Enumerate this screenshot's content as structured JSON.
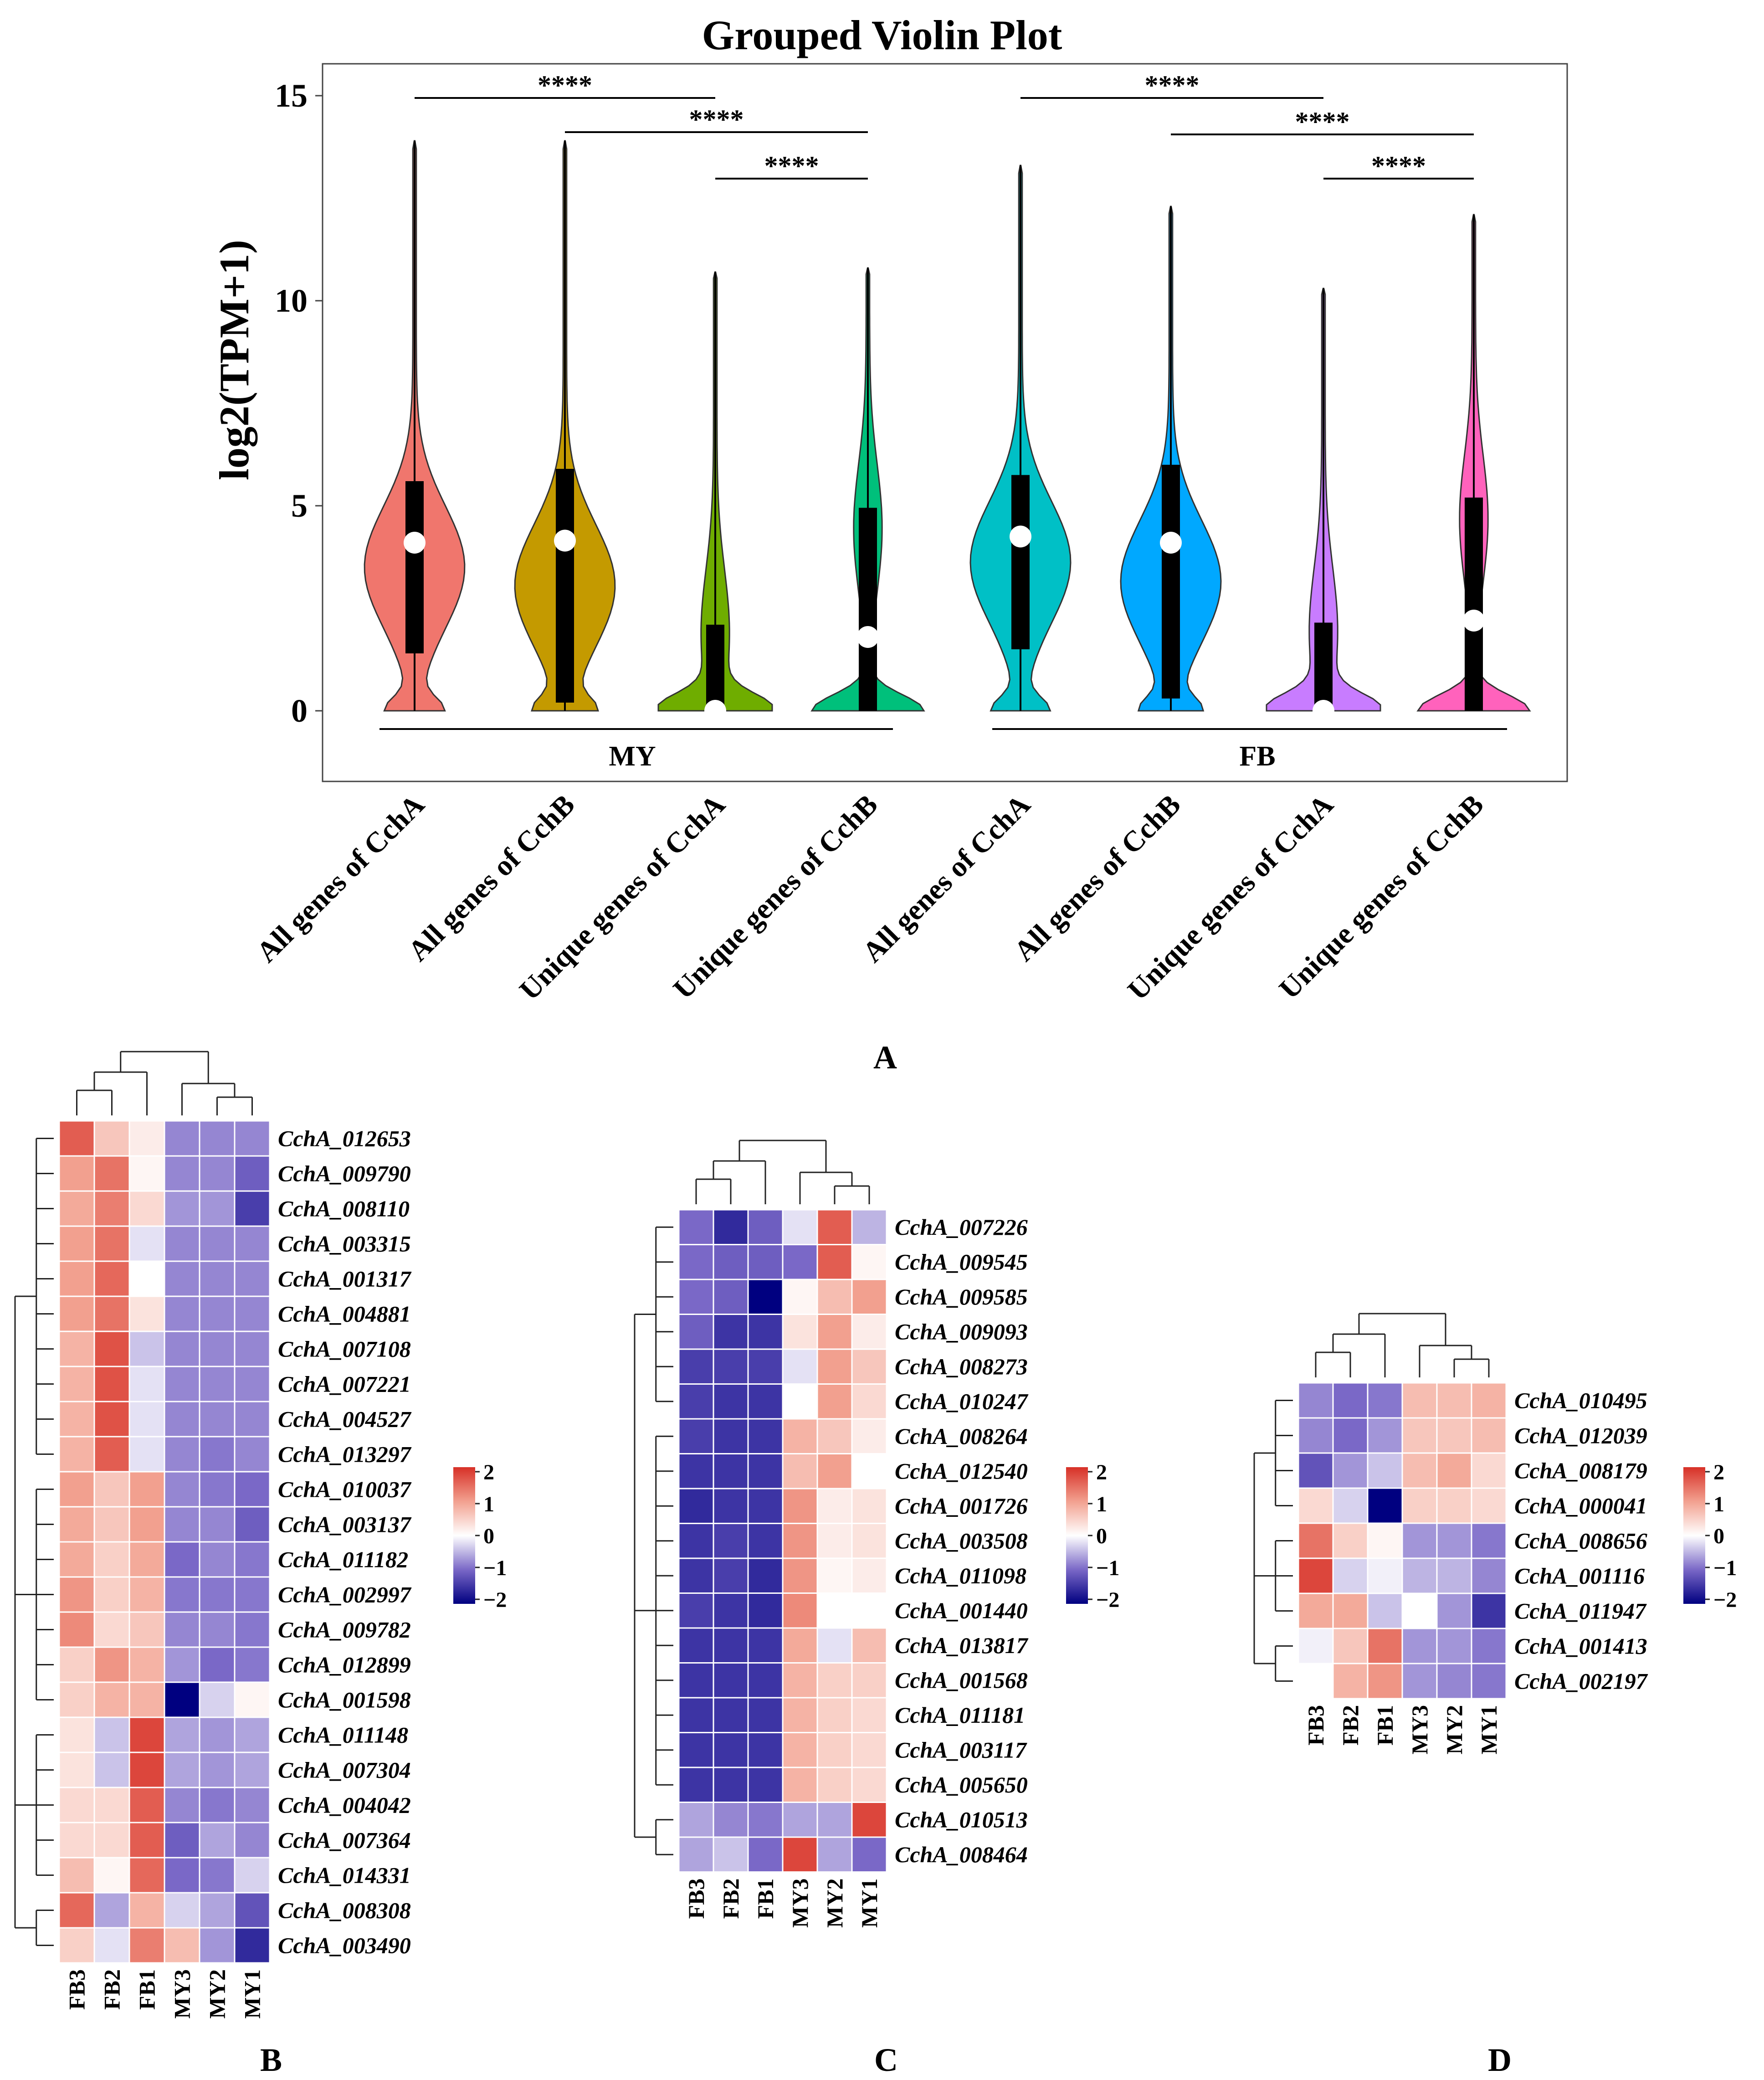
{
  "chart_data": [
    {
      "type": "violin",
      "panel_label": "A",
      "title": "Grouped Violin Plot",
      "ylabel": "log2(TPM+1)",
      "xlabel": "",
      "ylim": [
        -1,
        15.7
      ],
      "yticks": [
        0,
        5,
        10,
        15
      ],
      "categories": [
        "All genes of CchA",
        "All genes of CchB",
        "Unique genes of CchA",
        "Unique genes of CchB",
        "All genes of CchA",
        "All genes of CchB",
        "Unique genes of CchA",
        "Unique genes of CchB"
      ],
      "groups": [
        {
          "name": "MY",
          "members": [
            0,
            1,
            2,
            3
          ]
        },
        {
          "name": "FB",
          "members": [
            4,
            5,
            6,
            7
          ]
        }
      ],
      "series": [
        {
          "name": "All genes of CchA",
          "group": "MY",
          "color": "#f0766d",
          "min": 0,
          "q1": 1.4,
          "median": 4.1,
          "q3": 5.6,
          "max": 13.9
        },
        {
          "name": "All genes of CchB",
          "group": "MY",
          "color": "#c49a00",
          "min": 0,
          "q1": 0.2,
          "median": 4.15,
          "q3": 5.9,
          "max": 13.9
        },
        {
          "name": "Unique genes of CchA",
          "group": "MY",
          "color": "#6fad00",
          "min": 0,
          "q1": 0,
          "median": 0,
          "q3": 2.1,
          "max": 10.7
        },
        {
          "name": "Unique genes of CchB",
          "group": "MY",
          "color": "#00c07b",
          "min": 0,
          "q1": 0,
          "median": 1.8,
          "q3": 4.95,
          "max": 10.8
        },
        {
          "name": "All genes of CchA",
          "group": "FB",
          "color": "#00c0c6",
          "min": 0,
          "q1": 1.5,
          "median": 4.25,
          "q3": 5.75,
          "max": 13.3
        },
        {
          "name": "All genes of CchB",
          "group": "FB",
          "color": "#00a8ff",
          "min": 0,
          "q1": 0.3,
          "median": 4.1,
          "q3": 6.0,
          "max": 12.3
        },
        {
          "name": "Unique genes of CchA",
          "group": "FB",
          "color": "#c87cff",
          "min": 0,
          "q1": 0,
          "median": 0,
          "q3": 2.15,
          "max": 10.3
        },
        {
          "name": "Unique genes of CchB",
          "group": "FB",
          "color": "#ff62bc",
          "min": 0,
          "q1": 0,
          "median": 2.2,
          "q3": 5.2,
          "max": 12.1
        }
      ],
      "significance": [
        {
          "from": 0,
          "to": 2,
          "label": "****"
        },
        {
          "from": 1,
          "to": 3,
          "label": "****"
        },
        {
          "from": 2,
          "to": 3,
          "label": "****"
        },
        {
          "from": 4,
          "to": 6,
          "label": "****"
        },
        {
          "from": 5,
          "to": 7,
          "label": "****"
        },
        {
          "from": 6,
          "to": 7,
          "label": "****"
        }
      ]
    },
    {
      "type": "heatmap",
      "panel_label": "B",
      "columns": [
        "FB3",
        "FB2",
        "FB1",
        "MY3",
        "MY2",
        "MY1"
      ],
      "rows": [
        "CchA_012653",
        "CchA_009790",
        "CchA_008110",
        "CchA_003315",
        "CchA_001317",
        "CchA_004881",
        "CchA_007108",
        "CchA_007221",
        "CchA_004527",
        "CchA_013297",
        "CchA_010037",
        "CchA_003137",
        "CchA_011182",
        "CchA_002997",
        "CchA_009782",
        "CchA_012899",
        "CchA_001598",
        "CchA_011148",
        "CchA_007304",
        "CchA_004042",
        "CchA_007364",
        "CchA_014331",
        "CchA_008308",
        "CchA_003490"
      ],
      "values": [
        [
          1.6,
          0.6,
          0.2,
          -0.8,
          -0.8,
          -0.8
        ],
        [
          1.0,
          1.4,
          0.1,
          -0.8,
          -0.8,
          -1.1
        ],
        [
          0.9,
          1.3,
          0.4,
          -0.7,
          -0.7,
          -1.4
        ],
        [
          1.0,
          1.4,
          -0.2,
          -0.8,
          -0.8,
          -0.8
        ],
        [
          1.0,
          1.5,
          0.0,
          -0.8,
          -0.8,
          -0.8
        ],
        [
          1.0,
          1.4,
          0.3,
          -0.8,
          -0.8,
          -0.8
        ],
        [
          0.8,
          1.7,
          -0.4,
          -0.8,
          -0.8,
          -0.8
        ],
        [
          0.8,
          1.7,
          -0.2,
          -0.8,
          -0.8,
          -0.8
        ],
        [
          0.8,
          1.7,
          -0.2,
          -0.8,
          -0.8,
          -0.8
        ],
        [
          0.8,
          1.6,
          -0.2,
          -0.8,
          -0.9,
          -0.8
        ],
        [
          1.0,
          0.6,
          1.0,
          -0.8,
          -0.9,
          -1.0
        ],
        [
          0.9,
          0.6,
          1.0,
          -0.8,
          -0.8,
          -1.1
        ],
        [
          0.9,
          0.5,
          0.9,
          -1.0,
          -0.8,
          -0.9
        ],
        [
          1.1,
          0.5,
          0.8,
          -0.9,
          -0.9,
          -0.9
        ],
        [
          1.2,
          0.4,
          0.6,
          -0.8,
          -0.8,
          -0.9
        ],
        [
          0.5,
          1.1,
          0.8,
          -0.7,
          -1.0,
          -0.9
        ],
        [
          0.5,
          0.8,
          0.8,
          -2.2,
          -0.3,
          0.1
        ],
        [
          0.3,
          -0.4,
          1.8,
          -0.6,
          -0.7,
          -0.6
        ],
        [
          0.3,
          -0.4,
          1.8,
          -0.6,
          -0.7,
          -0.6
        ],
        [
          0.4,
          0.4,
          1.6,
          -0.8,
          -0.9,
          -0.8
        ],
        [
          0.4,
          0.4,
          1.6,
          -1.1,
          -0.6,
          -0.8
        ],
        [
          0.7,
          0.1,
          1.5,
          -1.0,
          -0.9,
          -0.3
        ],
        [
          1.5,
          -0.6,
          0.8,
          -0.3,
          -0.6,
          -1.2
        ],
        [
          0.5,
          -0.2,
          1.3,
          0.7,
          -0.7,
          -1.6
        ]
      ],
      "legend_ticks": [
        2,
        1,
        0,
        -1,
        -2
      ]
    },
    {
      "type": "heatmap",
      "panel_label": "C",
      "columns": [
        "FB3",
        "FB2",
        "FB1",
        "MY3",
        "MY2",
        "MY1"
      ],
      "rows": [
        "CchA_007226",
        "CchA_009545",
        "CchA_009585",
        "CchA_009093",
        "CchA_008273",
        "CchA_010247",
        "CchA_008264",
        "CchA_012540",
        "CchA_001726",
        "CchA_003508",
        "CchA_011098",
        "CchA_001440",
        "CchA_013817",
        "CchA_001568",
        "CchA_011181",
        "CchA_003117",
        "CchA_005650",
        "CchA_010513",
        "CchA_008464"
      ],
      "values": [
        [
          -1.0,
          -1.6,
          -1.1,
          -0.2,
          1.6,
          -0.5
        ],
        [
          -1.0,
          -1.1,
          -1.1,
          -1.0,
          1.6,
          0.1
        ],
        [
          -1.0,
          -1.1,
          -2.0,
          0.1,
          0.7,
          1.0
        ],
        [
          -1.1,
          -1.5,
          -1.5,
          0.3,
          1.0,
          0.2
        ],
        [
          -1.4,
          -1.4,
          -1.4,
          -0.2,
          1.0,
          0.6
        ],
        [
          -1.4,
          -1.5,
          -1.5,
          0.0,
          1.0,
          0.4
        ],
        [
          -1.4,
          -1.5,
          -1.5,
          0.8,
          0.6,
          0.2
        ],
        [
          -1.5,
          -1.5,
          -1.5,
          0.7,
          1.0,
          0.0
        ],
        [
          -1.6,
          -1.5,
          -1.5,
          1.1,
          0.2,
          0.3
        ],
        [
          -1.5,
          -1.4,
          -1.5,
          1.1,
          0.2,
          0.3
        ],
        [
          -1.5,
          -1.4,
          -1.6,
          1.1,
          0.1,
          0.2
        ],
        [
          -1.4,
          -1.5,
          -1.6,
          1.2,
          0.0,
          0.0
        ],
        [
          -1.5,
          -1.5,
          -1.5,
          0.9,
          -0.2,
          0.7
        ],
        [
          -1.5,
          -1.5,
          -1.5,
          0.8,
          0.5,
          0.5
        ],
        [
          -1.5,
          -1.5,
          -1.5,
          0.8,
          0.5,
          0.4
        ],
        [
          -1.5,
          -1.5,
          -1.5,
          0.8,
          0.5,
          0.4
        ],
        [
          -1.5,
          -1.5,
          -1.5,
          0.8,
          0.5,
          0.4
        ],
        [
          -0.6,
          -0.8,
          -0.9,
          -0.6,
          -0.6,
          1.8
        ],
        [
          -0.6,
          -0.4,
          -1.0,
          1.8,
          -0.6,
          -1.0
        ]
      ],
      "legend_ticks": [
        2,
        1,
        0,
        -1,
        -2
      ]
    },
    {
      "type": "heatmap",
      "panel_label": "D",
      "columns": [
        "FB3",
        "FB2",
        "FB1",
        "MY3",
        "MY2",
        "MY1"
      ],
      "rows": [
        "CchA_010495",
        "CchA_012039",
        "CchA_008179",
        "CchA_000041",
        "CchA_008656",
        "CchA_001116",
        "CchA_011947",
        "CchA_001413",
        "CchA_002197"
      ],
      "values": [
        [
          -0.8,
          -1.0,
          -0.9,
          0.7,
          0.7,
          0.8
        ],
        [
          -0.8,
          -1.0,
          -0.7,
          0.6,
          0.6,
          0.7
        ],
        [
          -1.2,
          -0.7,
          -0.4,
          0.7,
          0.9,
          0.4
        ],
        [
          0.4,
          -0.3,
          -2.1,
          0.5,
          0.5,
          0.4
        ],
        [
          1.4,
          0.5,
          0.1,
          -0.7,
          -0.7,
          -0.9
        ],
        [
          1.8,
          -0.3,
          -0.1,
          -0.5,
          -0.5,
          -0.8
        ],
        [
          0.9,
          0.9,
          -0.4,
          0.0,
          -0.7,
          -1.5
        ],
        [
          -0.1,
          0.6,
          1.4,
          -0.7,
          -0.7,
          -0.9
        ],
        [
          0.0,
          0.8,
          1.1,
          -0.7,
          -0.8,
          -0.9
        ]
      ],
      "legend_ticks": [
        2,
        1,
        0,
        -1,
        -2
      ]
    }
  ]
}
